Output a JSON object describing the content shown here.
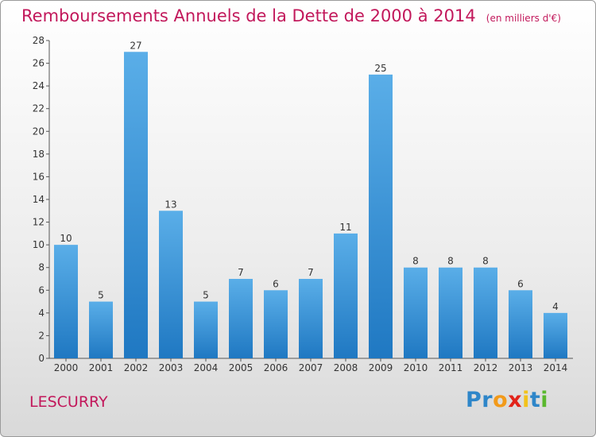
{
  "header": {
    "title": "Remboursements Annuels de la Dette de 2000 à 2014",
    "unit": "(en milliers d'€)"
  },
  "footer": {
    "place": "LESCURRY",
    "logo": [
      "P",
      "r",
      "o",
      "x",
      "i",
      "t",
      "i"
    ]
  },
  "colors": {
    "title": "#c2185b",
    "bar_top": "#5aaee8",
    "bar_bottom": "#1f78c2",
    "logo": [
      "#2e86c9",
      "#2e86c9",
      "#f29a1a",
      "#e2231a",
      "#f2c21a",
      "#2e86c9",
      "#5ab82e"
    ]
  },
  "chart_data": {
    "type": "bar",
    "categories": [
      "2000",
      "2001",
      "2002",
      "2003",
      "2004",
      "2005",
      "2006",
      "2007",
      "2008",
      "2009",
      "2010",
      "2011",
      "2012",
      "2013",
      "2014"
    ],
    "values": [
      10,
      5,
      27,
      13,
      5,
      7,
      6,
      7,
      11,
      25,
      8,
      8,
      8,
      6,
      4
    ],
    "ylim": [
      0,
      28
    ],
    "yticks": [
      0,
      2,
      4,
      6,
      8,
      10,
      12,
      14,
      16,
      18,
      20,
      22,
      24,
      26,
      28
    ],
    "grid": false,
    "data_labels": true
  }
}
